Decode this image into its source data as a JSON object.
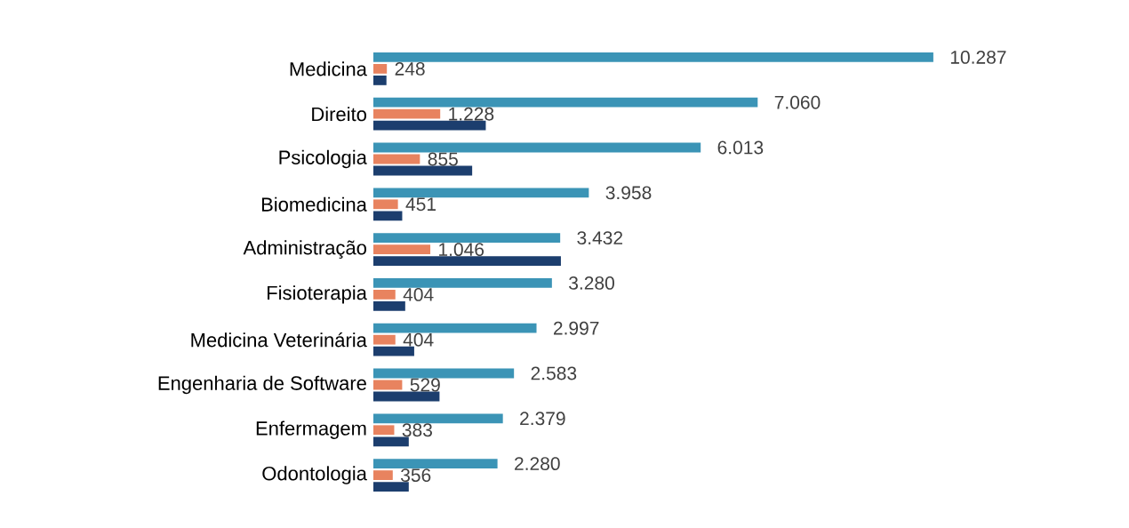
{
  "chart_data": {
    "type": "bar",
    "orientation": "horizontal",
    "tick_labels": "y",
    "categories": [
      "Medicina",
      "Direito",
      "Psicologia",
      "Biomedicina",
      "Administração",
      "Fisioterapia",
      "Medicina Veterinária",
      "Engenharia de Software",
      "Enfermagem",
      "Odontologia"
    ],
    "series": [
      {
        "color": "#3b94b6",
        "values": [
          10287,
          7060,
          6013,
          3958,
          3432,
          3280,
          2997,
          2583,
          2379,
          2280
        ],
        "value_labels": [
          "10.287",
          "7.060",
          "6.013",
          "3.958",
          "3.432",
          "3.280",
          "2.997",
          "2.583",
          "2.379",
          "2.280"
        ]
      },
      {
        "color": "#e8835f",
        "values": [
          248,
          1228,
          855,
          451,
          1046,
          404,
          404,
          529,
          383,
          356
        ],
        "value_labels": [
          "248",
          "1.228",
          "855",
          "451",
          "1.046",
          "404",
          "404",
          "529",
          "383",
          "356"
        ]
      },
      {
        "color": "#1c3e6e",
        "values": [
          240,
          2065,
          1815,
          530,
          3445,
          585,
          750,
          1215,
          650,
          650
        ]
      }
    ]
  }
}
